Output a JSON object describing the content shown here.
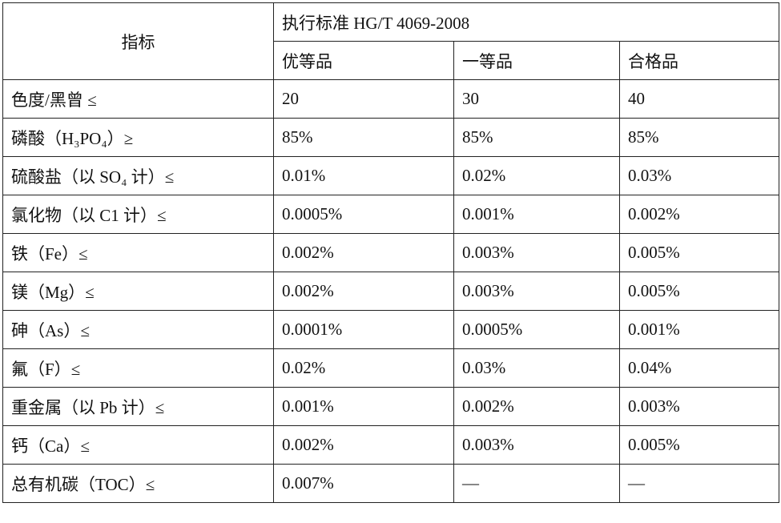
{
  "header": {
    "title": "指标",
    "standard": "执行标准 HG/T 4069-2008",
    "grades": [
      "优等品",
      "一等品",
      "合格品"
    ]
  },
  "table": {
    "rows": [
      [
        "色度/黑曾 ≤",
        "20",
        "30",
        "40"
      ],
      [
        "磷酸（H₃PO₄）≥",
        "85%",
        "85%",
        "85%"
      ],
      [
        "硫酸盐（以 SO₄ 计）≤",
        "0.01%",
        "0.02%",
        "0.03%"
      ],
      [
        "氯化物（以 C1 计）≤",
        "0.0005%",
        "0.001%",
        "0.002%"
      ],
      [
        "铁（Fe）≤",
        "0.002%",
        "0.003%",
        "0.005%"
      ],
      [
        "镁（Mg）≤",
        "0.002%",
        "0.003%",
        "0.005%"
      ],
      [
        "砷（As）≤",
        "0.0001%",
        "0.0005%",
        "0.001%"
      ],
      [
        "氟（F）≤",
        "0.02%",
        "0.03%",
        "0.04%"
      ],
      [
        "重金属（以 Pb 计）≤",
        "0.001%",
        "0.002%",
        "0.003%"
      ],
      [
        "钙（Ca）≤",
        "0.002%",
        "0.003%",
        "0.005%"
      ],
      [
        "总有机碳（TOC）≤",
        "0.007%",
        "—",
        "—"
      ]
    ]
  }
}
